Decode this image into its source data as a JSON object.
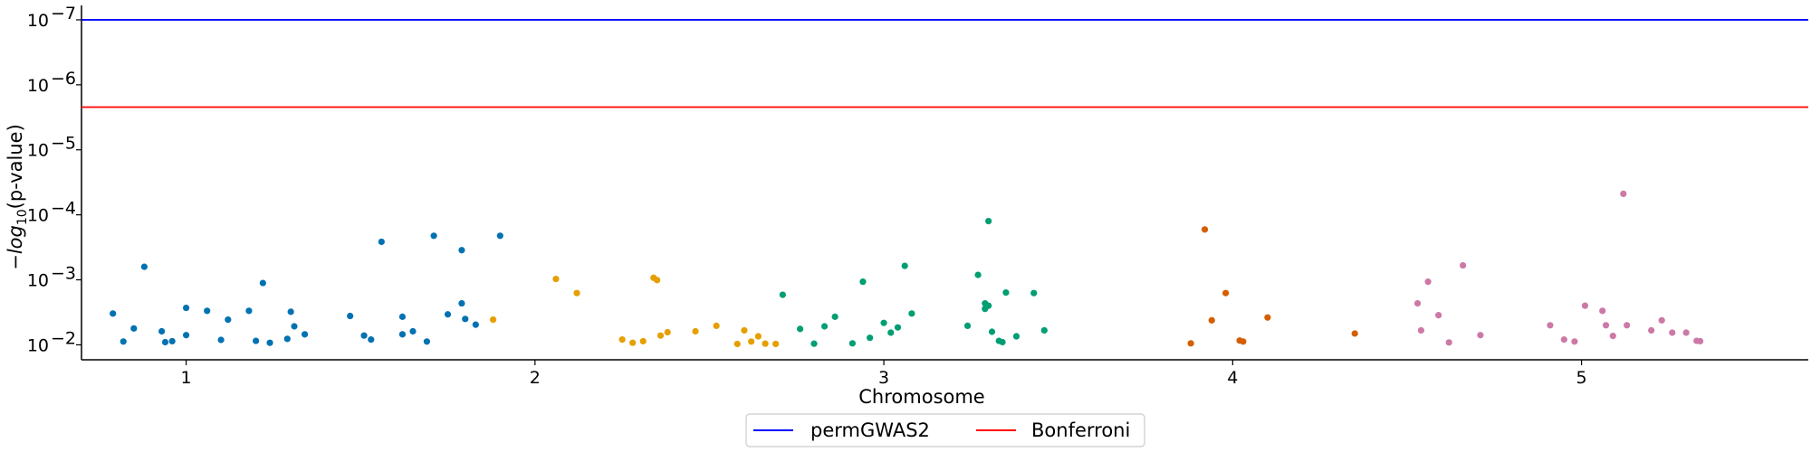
{
  "chart_data": {
    "type": "scatter",
    "title": "",
    "xlabel": "Chromosome",
    "ylabel": "−log10(p-value)",
    "ylabel_parts": {
      "prefix": "−",
      "log": "log",
      "base": "10",
      "suffix": "(p-value)"
    },
    "y_scale": "log-inverted",
    "y_range_pvalue": [
      0.017,
      6e-08
    ],
    "x_range": [
      0.7,
      5.65
    ],
    "x_ticks": [
      {
        "label": "1",
        "value": 1
      },
      {
        "label": "2",
        "value": 2
      },
      {
        "label": "3",
        "value": 3
      },
      {
        "label": "4",
        "value": 4
      },
      {
        "label": "5",
        "value": 5
      }
    ],
    "y_ticks": [
      {
        "base": "10",
        "exp": "−7",
        "value": 1e-07
      },
      {
        "base": "10",
        "exp": "−6",
        "value": 1e-06
      },
      {
        "base": "10",
        "exp": "−5",
        "value": 1e-05
      },
      {
        "base": "10",
        "exp": "−4",
        "value": 0.0001
      },
      {
        "base": "10",
        "exp": "−3",
        "value": 0.001
      },
      {
        "base": "10",
        "exp": "−2",
        "value": 0.01
      }
    ],
    "grid": false,
    "legend": {
      "placement": "bottom-center",
      "entries": [
        {
          "label": "permGWAS2",
          "color": "#0000ff"
        },
        {
          "label": "Bonferroni",
          "color": "#ff0000"
        }
      ]
    },
    "thresholds": [
      {
        "name": "permGWAS2",
        "pvalue": 1e-07,
        "color": "#0000ff"
      },
      {
        "name": "Bonferroni",
        "pvalue": 2.2e-06,
        "color": "#ff0000"
      }
    ],
    "series": [
      {
        "chromosome": "1",
        "color": "#0072b2",
        "points": [
          [
            0.79,
            0.0033
          ],
          [
            0.82,
            0.0089
          ],
          [
            0.85,
            0.0056
          ],
          [
            0.88,
            0.00063
          ],
          [
            0.93,
            0.0062
          ],
          [
            0.94,
            0.0091
          ],
          [
            0.96,
            0.0088
          ],
          [
            1.0,
            0.0027
          ],
          [
            1.0,
            0.0071
          ],
          [
            1.06,
            0.003
          ],
          [
            1.1,
            0.0084
          ],
          [
            1.12,
            0.0041
          ],
          [
            1.18,
            0.003
          ],
          [
            1.2,
            0.0087
          ],
          [
            1.22,
            0.00112
          ],
          [
            1.24,
            0.0093
          ],
          [
            1.29,
            0.0081
          ],
          [
            1.3,
            0.0031
          ],
          [
            1.31,
            0.0052
          ],
          [
            1.34,
            0.0069
          ],
          [
            1.47,
            0.0036
          ],
          [
            1.51,
            0.0072
          ],
          [
            1.53,
            0.0083
          ],
          [
            1.56,
            0.00026
          ],
          [
            1.62,
            0.0037
          ],
          [
            1.62,
            0.0069
          ],
          [
            1.65,
            0.0062
          ],
          [
            1.69,
            0.0089
          ],
          [
            1.71,
            0.00021
          ],
          [
            1.75,
            0.0034
          ],
          [
            1.79,
            0.00035
          ],
          [
            1.9,
            0.00021
          ],
          [
            1.79,
            0.0023
          ],
          [
            1.8,
            0.004
          ],
          [
            1.83,
            0.0049
          ]
        ]
      },
      {
        "chromosome": "2",
        "color": "#e69f00",
        "points": [
          [
            1.88,
            0.0041
          ],
          [
            2.06,
            0.00097
          ],
          [
            2.12,
            0.0016
          ],
          [
            2.25,
            0.0083
          ],
          [
            2.28,
            0.0093
          ],
          [
            2.31,
            0.0088
          ],
          [
            2.34,
            0.00093
          ],
          [
            2.35,
            0.00101
          ],
          [
            2.36,
            0.0072
          ],
          [
            2.38,
            0.0064
          ],
          [
            2.46,
            0.0062
          ],
          [
            2.52,
            0.0051
          ],
          [
            2.58,
            0.0097
          ],
          [
            2.6,
            0.006
          ],
          [
            2.62,
            0.0089
          ],
          [
            2.64,
            0.0074
          ],
          [
            2.66,
            0.0096
          ],
          [
            2.69,
            0.0097
          ]
        ]
      },
      {
        "chromosome": "3",
        "color": "#009e73",
        "points": [
          [
            2.71,
            0.0017
          ],
          [
            2.76,
            0.0057
          ],
          [
            2.8,
            0.0096
          ],
          [
            2.83,
            0.0052
          ],
          [
            2.86,
            0.0037
          ],
          [
            2.91,
            0.0095
          ],
          [
            2.94,
            0.00107
          ],
          [
            2.96,
            0.0078
          ],
          [
            3.0,
            0.0046
          ],
          [
            3.02,
            0.0065
          ],
          [
            3.04,
            0.0054
          ],
          [
            3.06,
            0.00061
          ],
          [
            3.08,
            0.0033
          ],
          [
            3.24,
            0.0051
          ],
          [
            3.27,
            0.00084
          ],
          [
            3.29,
            0.0023
          ],
          [
            3.29,
            0.0028
          ],
          [
            3.3,
            0.0025
          ],
          [
            3.3,
            0.000125
          ],
          [
            3.31,
            0.0063
          ],
          [
            3.33,
            0.0087
          ],
          [
            3.34,
            0.0091
          ],
          [
            3.35,
            0.00157
          ],
          [
            3.38,
            0.0074
          ],
          [
            3.43,
            0.0016
          ],
          [
            3.46,
            0.006
          ]
        ]
      },
      {
        "chromosome": "4",
        "color": "#d55e00",
        "points": [
          [
            3.88,
            0.0095
          ],
          [
            3.92,
            0.000168
          ],
          [
            3.94,
            0.0042
          ],
          [
            3.98,
            0.0016
          ],
          [
            4.02,
            0.0086
          ],
          [
            4.03,
            0.0089
          ],
          [
            4.1,
            0.0038
          ],
          [
            4.35,
            0.0067
          ]
        ]
      },
      {
        "chromosome": "5",
        "color": "#cc79a7",
        "points": [
          [
            4.53,
            0.0023
          ],
          [
            4.54,
            0.006
          ],
          [
            4.56,
            0.00107
          ],
          [
            4.59,
            0.0035
          ],
          [
            4.62,
            0.0092
          ],
          [
            4.66,
            0.0006
          ],
          [
            4.71,
            0.0071
          ],
          [
            4.91,
            0.005
          ],
          [
            4.95,
            0.0083
          ],
          [
            4.98,
            0.0089
          ],
          [
            5.01,
            0.0025
          ],
          [
            5.06,
            0.003
          ],
          [
            5.07,
            0.005
          ],
          [
            5.09,
            0.0073
          ],
          [
            5.12,
            4.75e-05
          ],
          [
            5.13,
            0.005
          ],
          [
            5.2,
            0.006
          ],
          [
            5.23,
            0.0042
          ],
          [
            5.26,
            0.0065
          ],
          [
            5.3,
            0.0065
          ],
          [
            5.33,
            0.0087
          ],
          [
            5.34,
            0.0088
          ]
        ]
      }
    ]
  }
}
